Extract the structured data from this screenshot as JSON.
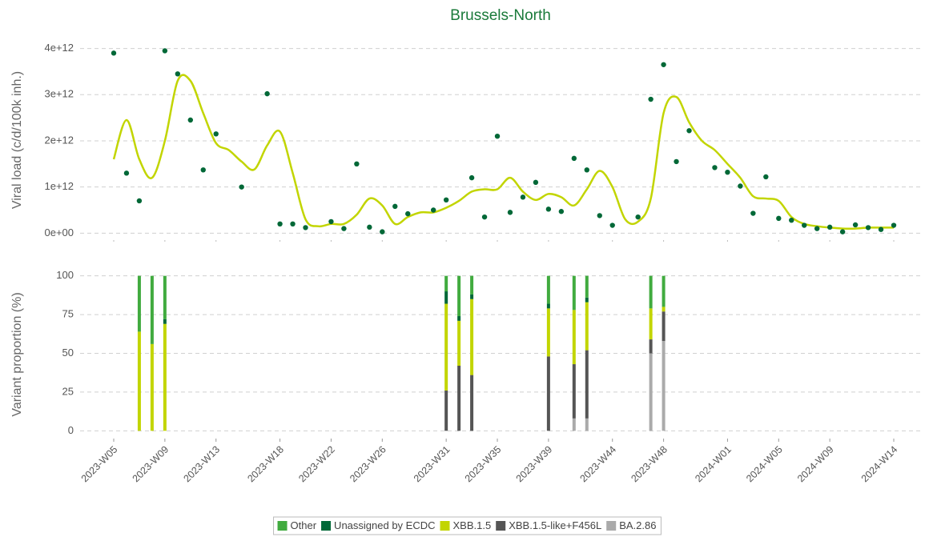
{
  "chart_data": [
    {
      "type": "scatter",
      "title": "Brussels-North",
      "y_label": "Viral load (c/d/100k inh.)",
      "values": [
        3900000000000.0,
        1300000000000.0,
        700000000000.0,
        null,
        3950000000000.0,
        3450000000000.0,
        2450000000000.0,
        1370000000000.0,
        2150000000000.0,
        null,
        1000000000000.0,
        null,
        3020000000000.0,
        200000000000.0,
        200000000000.0,
        120000000000.0,
        null,
        250000000000.0,
        100000000000.0,
        1500000000000.0,
        130000000000.0,
        30000000000.0,
        580000000000.0,
        420000000000.0,
        null,
        500000000000.0,
        720000000000.0,
        null,
        1200000000000.0,
        350000000000.0,
        2100000000000.0,
        450000000000.0,
        780000000000.0,
        1100000000000.0,
        520000000000.0,
        470000000000.0,
        1620000000000.0,
        1370000000000.0,
        380000000000.0,
        170000000000.0,
        null,
        350000000000.0,
        2900000000000.0,
        3650000000000.0,
        1550000000000.0,
        2220000000000.0,
        null,
        1420000000000.0,
        1320000000000.0,
        1020000000000.0,
        430000000000.0,
        1220000000000.0,
        320000000000.0,
        280000000000.0,
        170000000000.0,
        100000000000.0,
        130000000000.0,
        30000000000.0,
        180000000000.0,
        120000000000.0,
        80000000000.0,
        170000000000.0
      ],
      "color": "#006837",
      "trend": {
        "color": "#c2d500",
        "values": [
          1600000000000.0,
          2450000000000.0,
          1600000000000.0,
          1200000000000.0,
          2000000000000.0,
          3300000000000.0,
          3300000000000.0,
          2600000000000.0,
          1950000000000.0,
          1800000000000.0,
          1550000000000.0,
          1380000000000.0,
          1900000000000.0,
          2200000000000.0,
          1300000000000.0,
          300000000000.0,
          150000000000.0,
          200000000000.0,
          200000000000.0,
          400000000000.0,
          750000000000.0,
          600000000000.0,
          200000000000.0,
          350000000000.0,
          450000000000.0,
          450000000000.0,
          550000000000.0,
          700000000000.0,
          900000000000.0,
          950000000000.0,
          950000000000.0,
          1200000000000.0,
          900000000000.0,
          720000000000.0,
          850000000000.0,
          780000000000.0,
          600000000000.0,
          950000000000.0,
          1350000000000.0,
          1000000000000.0,
          300000000000.0,
          250000000000.0,
          750000000000.0,
          2600000000000.0,
          2950000000000.0,
          2400000000000.0,
          2000000000000.0,
          1800000000000.0,
          1500000000000.0,
          1200000000000.0,
          800000000000.0,
          750000000000.0,
          700000000000.0,
          350000000000.0,
          200000000000.0,
          150000000000.0,
          120000000000.0,
          100000000000.0,
          100000000000.0,
          120000000000.0,
          120000000000.0,
          120000000000.0
        ]
      },
      "ylim": [
        -150000000000.0,
        4270000000000.0
      ],
      "yticks": [
        {
          "value": 0,
          "label": "0e+00"
        },
        {
          "value": 1000000000000.0,
          "label": "1e+12"
        },
        {
          "value": 2000000000000.0,
          "label": "2e+12"
        },
        {
          "value": 3000000000000.0,
          "label": "3e+12"
        },
        {
          "value": 4000000000000.0,
          "label": "4e+12"
        }
      ],
      "grid": true
    },
    {
      "type": "bar",
      "y_label": "Variant proportion (%)",
      "categories": [
        "2023-W05",
        null,
        null,
        null,
        "2023-W09",
        null,
        null,
        null,
        "2023-W13",
        null,
        null,
        null,
        null,
        "2023-W18",
        null,
        null,
        null,
        "2023-W22",
        null,
        null,
        null,
        "2023-W26",
        null,
        null,
        null,
        null,
        "2023-W31",
        null,
        null,
        null,
        "2023-W35",
        null,
        null,
        null,
        "2023-W39",
        null,
        null,
        null,
        null,
        "2023-W44",
        null,
        null,
        null,
        "2023-W48",
        null,
        null,
        null,
        null,
        "2024-W01",
        null,
        null,
        null,
        "2024-W05",
        null,
        null,
        null,
        "2024-W09",
        null,
        null,
        null,
        null,
        "2024-W14"
      ],
      "series": [
        {
          "name": "Other",
          "color": "#41ab3f",
          "values": [
            null,
            null,
            36,
            44,
            28,
            null,
            null,
            null,
            null,
            null,
            null,
            null,
            null,
            null,
            null,
            null,
            null,
            null,
            null,
            null,
            null,
            null,
            null,
            null,
            null,
            null,
            10,
            26,
            12,
            null,
            null,
            null,
            null,
            null,
            18,
            null,
            22,
            14,
            null,
            null,
            null,
            null,
            21,
            20,
            null,
            null,
            null,
            null,
            null,
            null,
            null,
            null,
            null,
            null,
            null,
            null,
            null,
            null,
            null,
            null,
            null,
            null
          ]
        },
        {
          "name": "Unassigned by ECDC",
          "color": "#006837",
          "values": [
            null,
            null,
            0,
            0,
            3,
            null,
            null,
            null,
            null,
            null,
            null,
            null,
            null,
            null,
            null,
            null,
            null,
            null,
            null,
            null,
            null,
            null,
            null,
            null,
            null,
            null,
            8,
            3,
            3,
            null,
            null,
            null,
            null,
            null,
            3,
            null,
            0,
            3,
            null,
            null,
            null,
            null,
            0,
            0,
            null,
            null,
            null,
            null,
            null,
            null,
            null,
            null,
            null,
            null,
            null,
            null,
            null,
            null,
            null,
            null,
            null,
            null
          ]
        },
        {
          "name": "XBB.1.5",
          "color": "#c2d500",
          "values": [
            null,
            null,
            64,
            56,
            69,
            null,
            null,
            null,
            null,
            null,
            null,
            null,
            null,
            null,
            null,
            null,
            null,
            null,
            null,
            null,
            null,
            null,
            null,
            null,
            null,
            null,
            56,
            29,
            49,
            null,
            null,
            null,
            null,
            null,
            31,
            null,
            35,
            31,
            null,
            null,
            null,
            null,
            20,
            3,
            null,
            null,
            null,
            null,
            null,
            null,
            null,
            null,
            null,
            null,
            null,
            null,
            null,
            null,
            null,
            null,
            null,
            null
          ]
        },
        {
          "name": "XBB.1.5-like+F456L",
          "color": "#555555",
          "values": [
            null,
            null,
            0,
            0,
            0,
            null,
            null,
            null,
            null,
            null,
            null,
            null,
            null,
            null,
            null,
            null,
            null,
            null,
            null,
            null,
            null,
            null,
            null,
            null,
            null,
            null,
            26,
            42,
            36,
            null,
            null,
            null,
            null,
            null,
            48,
            null,
            35,
            44,
            null,
            null,
            null,
            null,
            9,
            19,
            null,
            null,
            null,
            null,
            null,
            null,
            null,
            null,
            null,
            null,
            null,
            null,
            null,
            null,
            null,
            null,
            null,
            null
          ]
        },
        {
          "name": "BA.2.86",
          "color": "#aaaaaa",
          "values": [
            null,
            null,
            0,
            0,
            0,
            null,
            null,
            null,
            null,
            null,
            null,
            null,
            null,
            null,
            null,
            null,
            null,
            null,
            null,
            null,
            null,
            null,
            null,
            null,
            null,
            null,
            0,
            0,
            0,
            null,
            null,
            null,
            null,
            null,
            0,
            null,
            8,
            8,
            null,
            null,
            null,
            null,
            50,
            58,
            null,
            null,
            null,
            null,
            null,
            null,
            null,
            null,
            null,
            null,
            null,
            null,
            null,
            null,
            null,
            null,
            null,
            null
          ]
        }
      ],
      "ylim": [
        -5,
        105
      ],
      "yticks": [
        0,
        25,
        50,
        75,
        100
      ],
      "grid": true,
      "stacked": true,
      "legend": "bottom"
    }
  ]
}
